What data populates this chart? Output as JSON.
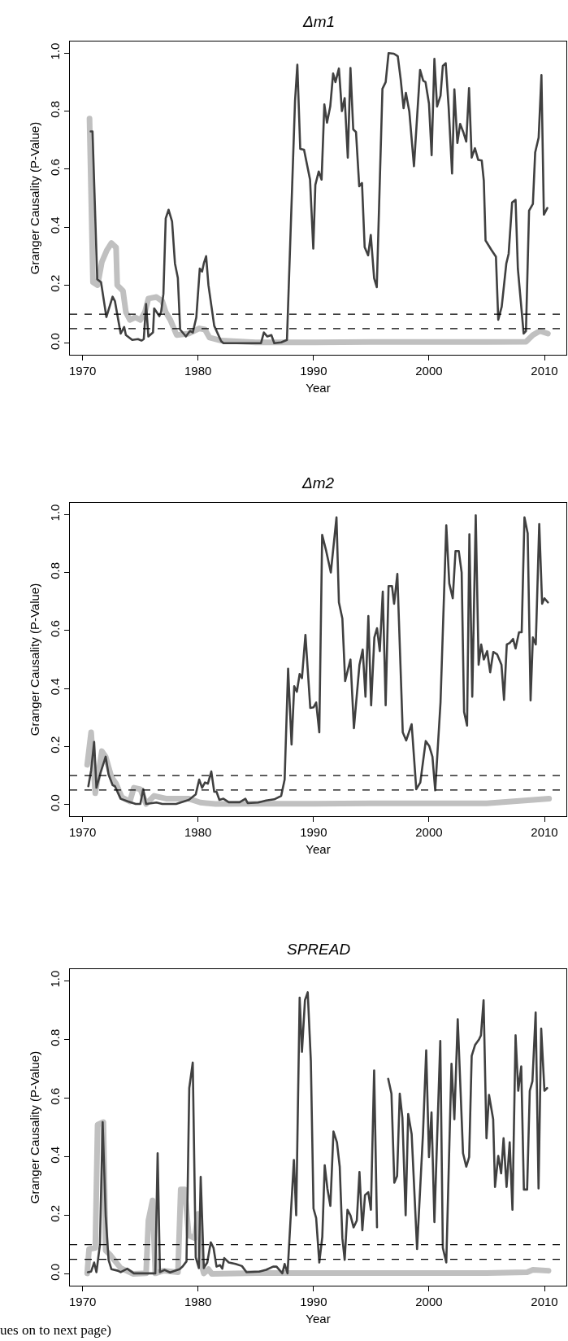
{
  "chart_data": [
    {
      "type": "line",
      "title": "Δm1",
      "xlabel": "Year",
      "ylabel": "Granger Causality (P-Value)",
      "xlim": [
        1968.9,
        2011.9
      ],
      "ylim": [
        -0.04,
        1.04
      ],
      "xticks": [
        1970,
        1980,
        1990,
        2000,
        2010
      ],
      "yticks": [
        {
          "value": 0,
          "label": "0.0"
        },
        {
          "value": 0.2,
          "label": "0.2"
        },
        {
          "value": 0.4,
          "label": "0.4"
        },
        {
          "value": 0.6,
          "label": "0.6"
        },
        {
          "value": 0.8,
          "label": "0.8"
        },
        {
          "value": 1,
          "label": "1.0"
        }
      ],
      "marker": "none",
      "line_style": "solid",
      "ref_lines": [
        {
          "axis": "y",
          "value": 0.1,
          "color": "#000000",
          "line_style": "dashed"
        },
        {
          "axis": "y",
          "value": 0.05,
          "color": "#000000",
          "line_style": "dashed"
        }
      ],
      "series": [
        {
          "color": "#c0c0c0",
          "x": [
            1970.6,
            1970.9,
            1971.3,
            1971.67,
            1972.1,
            1972.5,
            1972.9,
            1973.0,
            1973.5,
            1973.75,
            1974.1,
            1974.56,
            1975.0,
            1975.4,
            1975.7,
            1976.4,
            1976.9,
            1977.2,
            1977.6,
            1978.15,
            1979.2,
            1980.1,
            1980.6,
            1981.0,
            1982.0,
            1985.0,
            1990.0,
            1995.0,
            2000.0,
            2005.0,
            2008.4,
            2009.0,
            2009.6,
            2010.3
          ],
          "values": [
            0.774,
            0.21,
            0.2,
            0.28,
            0.32,
            0.345,
            0.33,
            0.2,
            0.18,
            0.107,
            0.08,
            0.089,
            0.08,
            0.107,
            0.154,
            0.159,
            0.145,
            0.107,
            0.08,
            0.028,
            0.033,
            0.051,
            0.047,
            0.019,
            0.009,
            0.003,
            0.003,
            0.004,
            0.004,
            0.004,
            0.005,
            0.028,
            0.042,
            0.033
          ]
        },
        {
          "color": "#404040",
          "x": [
            1970.7,
            1970.86,
            1971.27,
            1971.6,
            1972.06,
            1972.6,
            1972.8,
            1973.3,
            1973.6,
            1973.75,
            1974.3,
            1974.8,
            1975.1,
            1975.3,
            1975.5,
            1975.7,
            1976.1,
            1976.2,
            1976.65,
            1976.8,
            1977.0,
            1977.2,
            1977.45,
            1977.75,
            1978.0,
            1978.25,
            1978.45,
            1978.95,
            1979.3,
            1979.55,
            1979.85,
            1980.15,
            1980.35,
            1980.5,
            1980.7,
            1980.9,
            1981.4,
            1982.0,
            1982.2,
            1985.45,
            1985.7,
            1986.0,
            1986.35,
            1986.6,
            1987.2,
            1987.7,
            1988.4,
            1988.6,
            1988.85,
            1989.18,
            1989.7,
            1989.98,
            1990.16,
            1990.45,
            1990.7,
            1990.94,
            1991.17,
            1991.45,
            1991.7,
            1991.9,
            1992.2,
            1992.46,
            1992.7,
            1992.97,
            1993.2,
            1993.44,
            1993.68,
            1993.96,
            1994.2,
            1994.43,
            1994.73,
            1994.96,
            1995.25,
            1995.48,
            1995.97,
            1996.25,
            1996.5,
            1996.96,
            1997.3,
            1997.55,
            1997.8,
            1998.0,
            1998.3,
            1998.7,
            1999.23,
            1999.5,
            1999.7,
            2000.0,
            2000.23,
            2000.47,
            2000.7,
            2001.0,
            2001.2,
            2001.45,
            2001.7,
            2002.0,
            2002.2,
            2002.46,
            2002.7,
            2002.97,
            2003.23,
            2003.47,
            2003.7,
            2003.98,
            2004.26,
            2004.57,
            2004.75,
            2004.9,
            2005.4,
            2005.8,
            2006.0,
            2006.3,
            2006.7,
            2006.9,
            2007.2,
            2007.5,
            2007.7,
            2008.2,
            2008.4,
            2008.67,
            2009.0,
            2009.2,
            2009.5,
            2009.74,
            2009.95,
            2010.25
          ],
          "values": [
            0.73,
            0.73,
            0.22,
            0.21,
            0.09,
            0.16,
            0.145,
            0.033,
            0.056,
            0.028,
            0.011,
            0.014,
            0.009,
            0.014,
            0.135,
            0.023,
            0.037,
            0.12,
            0.093,
            0.107,
            0.17,
            0.43,
            0.46,
            0.42,
            0.275,
            0.225,
            0.047,
            0.023,
            0.042,
            0.037,
            0.089,
            0.257,
            0.247,
            0.275,
            0.3,
            0.2,
            0.06,
            0.007,
            0.0,
            0.0,
            0.037,
            0.023,
            0.028,
            0.0,
            0.003,
            0.011,
            0.835,
            0.96,
            0.67,
            0.667,
            0.564,
            0.326,
            0.546,
            0.592,
            0.564,
            0.823,
            0.76,
            0.816,
            0.93,
            0.9,
            0.947,
            0.8,
            0.845,
            0.64,
            0.949,
            0.737,
            0.728,
            0.541,
            0.552,
            0.331,
            0.303,
            0.373,
            0.224,
            0.193,
            0.877,
            0.9,
            1.0,
            0.998,
            0.989,
            0.91,
            0.81,
            0.863,
            0.798,
            0.61,
            0.942,
            0.905,
            0.9,
            0.826,
            0.648,
            0.98,
            0.816,
            0.853,
            0.956,
            0.965,
            0.816,
            0.585,
            0.875,
            0.69,
            0.756,
            0.728,
            0.695,
            0.879,
            0.64,
            0.672,
            0.632,
            0.63,
            0.56,
            0.354,
            0.322,
            0.298,
            0.081,
            0.126,
            0.275,
            0.308,
            0.485,
            0.494,
            0.256,
            0.033,
            0.042,
            0.457,
            0.48,
            0.658,
            0.709,
            0.924,
            0.443,
            0.466
          ]
        }
      ]
    },
    {
      "type": "line",
      "title": "Δm2",
      "xlabel": "Year",
      "ylabel": "Granger Causality (P-Value)",
      "xlim": [
        1968.9,
        2011.9
      ],
      "ylim": [
        -0.04,
        1.04
      ],
      "xticks": [
        1970,
        1980,
        1990,
        2000,
        2010
      ],
      "yticks": [
        {
          "value": 0,
          "label": "0.0"
        },
        {
          "value": 0.2,
          "label": "0.2"
        },
        {
          "value": 0.4,
          "label": "0.4"
        },
        {
          "value": 0.6,
          "label": "0.6"
        },
        {
          "value": 0.8,
          "label": "0.8"
        },
        {
          "value": 1,
          "label": "1.0"
        }
      ],
      "marker": "none",
      "line_style": "solid",
      "ref_lines": [
        {
          "axis": "y",
          "value": 0.1,
          "color": "#000000",
          "line_style": "dashed"
        },
        {
          "axis": "y",
          "value": 0.05,
          "color": "#000000",
          "line_style": "dashed"
        }
      ],
      "series": [
        {
          "color": "#c0c0c0",
          "x": [
            1970.4,
            1970.74,
            1971.1,
            1971.67,
            1972.0,
            1972.5,
            1972.9,
            1973.4,
            1974.1,
            1974.44,
            1975.0,
            1975.5,
            1976.2,
            1977.3,
            1979.2,
            1980.2,
            1981.5,
            1985.0,
            1990.0,
            1995.0,
            2000.0,
            2005.0,
            2009.0,
            2010.4
          ],
          "values": [
            0.137,
            0.249,
            0.039,
            0.184,
            0.165,
            0.095,
            0.072,
            0.025,
            0.011,
            0.058,
            0.053,
            0.002,
            0.03,
            0.02,
            0.02,
            0.007,
            0.002,
            0.003,
            0.003,
            0.004,
            0.004,
            0.004,
            0.016,
            0.02
          ]
        },
        {
          "color": "#404040",
          "x": [
            1970.5,
            1970.74,
            1971.0,
            1971.2,
            1971.55,
            1972.0,
            1972.25,
            1972.6,
            1972.8,
            1973.3,
            1973.9,
            1974.6,
            1975.0,
            1975.25,
            1975.5,
            1976.4,
            1976.9,
            1978.1,
            1979.2,
            1979.8,
            1980.1,
            1980.35,
            1980.6,
            1980.85,
            1981.15,
            1981.4,
            1981.6,
            1981.85,
            1982.2,
            1982.66,
            1983.6,
            1984.1,
            1984.3,
            1985.2,
            1985.9,
            1986.6,
            1987.2,
            1987.5,
            1987.8,
            1988.1,
            1988.33,
            1988.56,
            1988.8,
            1989.0,
            1989.3,
            1989.72,
            1990.0,
            1990.23,
            1990.5,
            1990.75,
            1991.1,
            1991.5,
            1991.99,
            1992.2,
            1992.5,
            1992.74,
            1993.2,
            1993.5,
            1993.98,
            1994.26,
            1994.5,
            1994.75,
            1994.99,
            1995.27,
            1995.5,
            1995.74,
            1996.0,
            1996.25,
            1996.5,
            1996.8,
            1996.98,
            1997.26,
            1997.73,
            1998.03,
            1998.5,
            1998.9,
            1999.25,
            1999.72,
            2000.02,
            2000.3,
            2000.54,
            2001.0,
            2001.5,
            2001.76,
            2002.06,
            2002.3,
            2002.58,
            2002.83,
            2003.04,
            2003.3,
            2003.5,
            2003.75,
            2004.05,
            2004.3,
            2004.52,
            2004.75,
            2005.04,
            2005.3,
            2005.57,
            2005.9,
            2006.28,
            2006.5,
            2006.74,
            2007.0,
            2007.28,
            2007.5,
            2007.8,
            2008.03,
            2008.27,
            2008.55,
            2008.8,
            2009.0,
            2009.25,
            2009.55,
            2009.8,
            2010.0,
            2010.3
          ],
          "values": [
            0.063,
            0.118,
            0.216,
            0.058,
            0.109,
            0.165,
            0.104,
            0.067,
            0.063,
            0.02,
            0.011,
            0.002,
            0.002,
            0.053,
            0.002,
            0.007,
            0.002,
            0.002,
            0.016,
            0.035,
            0.086,
            0.058,
            0.076,
            0.072,
            0.114,
            0.044,
            0.044,
            0.016,
            0.02,
            0.008,
            0.008,
            0.02,
            0.005,
            0.007,
            0.014,
            0.018,
            0.03,
            0.086,
            0.468,
            0.207,
            0.408,
            0.389,
            0.45,
            0.436,
            0.585,
            0.333,
            0.335,
            0.352,
            0.249,
            0.93,
            0.874,
            0.8,
            0.99,
            0.697,
            0.641,
            0.426,
            0.5,
            0.263,
            0.482,
            0.534,
            0.372,
            0.65,
            0.342,
            0.576,
            0.608,
            0.529,
            0.734,
            0.342,
            0.753,
            0.753,
            0.692,
            0.795,
            0.249,
            0.221,
            0.277,
            0.053,
            0.076,
            0.219,
            0.202,
            0.165,
            0.049,
            0.352,
            0.963,
            0.762,
            0.711,
            0.874,
            0.874,
            0.8,
            0.319,
            0.272,
            0.932,
            0.372,
            0.997,
            0.482,
            0.552,
            0.5,
            0.529,
            0.456,
            0.526,
            0.518,
            0.482,
            0.361,
            0.552,
            0.557,
            0.571,
            0.538,
            0.594,
            0.594,
            0.99,
            0.935,
            0.359,
            0.576,
            0.552,
            0.967,
            0.692,
            0.711,
            0.697
          ]
        }
      ]
    },
    {
      "type": "line",
      "title": "SPREAD",
      "xlabel": "Year",
      "ylabel": "Granger Causality (P-Value)",
      "xlim": [
        1968.9,
        2011.9
      ],
      "ylim": [
        -0.04,
        1.04
      ],
      "xticks": [
        1970,
        1980,
        1990,
        2000,
        2010
      ],
      "yticks": [
        {
          "value": 0,
          "label": "0.0"
        },
        {
          "value": 0.2,
          "label": "0.2"
        },
        {
          "value": 0.4,
          "label": "0.4"
        },
        {
          "value": 0.6,
          "label": "0.6"
        },
        {
          "value": 0.8,
          "label": "0.8"
        },
        {
          "value": 1,
          "label": "1.0"
        }
      ],
      "marker": "none",
      "line_style": "solid",
      "annotations": [
        "ues on to next page)"
      ],
      "ref_lines": [
        {
          "axis": "y",
          "value": 0.1,
          "color": "#000000",
          "line_style": "dashed"
        },
        {
          "axis": "y",
          "value": 0.05,
          "color": "#000000",
          "line_style": "dashed"
        }
      ],
      "series": [
        {
          "color": "#c0c0c0",
          "x": [
            1970.4,
            1970.56,
            1971.1,
            1971.3,
            1971.8,
            1972.0,
            1972.36,
            1973.3,
            1974.4,
            1975.5,
            1975.7,
            1976.06,
            1976.3,
            1977.0,
            1978.26,
            1978.5,
            1978.84,
            1979.2,
            1979.7,
            1980.0,
            1980.3,
            1980.5,
            1980.9,
            1981.2,
            1985.0,
            1990.0,
            1995.0,
            2000.0,
            2005.0,
            2008.5,
            2009.0,
            2010.35
          ],
          "values": [
            0.002,
            0.085,
            0.089,
            0.509,
            0.518,
            0.08,
            0.066,
            0.02,
            0.0,
            0.002,
            0.182,
            0.251,
            0.002,
            0.011,
            0.006,
            0.288,
            0.288,
            0.131,
            0.122,
            0.205,
            0.03,
            0.002,
            0.016,
            0.0,
            0.003,
            0.003,
            0.003,
            0.003,
            0.003,
            0.006,
            0.014,
            0.011
          ]
        },
        {
          "color": "#404040",
          "x": [
            1970.46,
            1970.74,
            1971.0,
            1971.2,
            1971.5,
            1971.74,
            1972.0,
            1972.25,
            1972.5,
            1973.05,
            1973.3,
            1973.87,
            1974.44,
            1976.3,
            1976.5,
            1976.7,
            1977.1,
            1977.57,
            1978.4,
            1978.66,
            1979.0,
            1979.24,
            1979.54,
            1979.8,
            1980.07,
            1980.23,
            1980.5,
            1980.8,
            1981.1,
            1981.34,
            1981.6,
            1981.9,
            1982.1,
            1982.27,
            1982.66,
            1983.24,
            1983.8,
            1984.2,
            1985.3,
            1985.9,
            1986.5,
            1986.8,
            1987.3,
            1987.5,
            1987.75,
            1988.3,
            1988.5,
            1988.8,
            1989.0,
            1989.26,
            1989.5,
            1989.77,
            1990.0,
            1990.23,
            1990.5,
            1990.76,
            1990.97,
            1991.2,
            1991.46,
            1991.73,
            1992.03,
            1992.27,
            1992.5,
            1992.7,
            1992.94,
            1993.2,
            1993.47,
            1993.75,
            1993.98,
            1994.23,
            1994.46,
            1994.74,
            1994.97,
            1995.25,
            1995.5,
            1996.0,
            1996.47,
            1996.75,
            1997.0,
            1997.24,
            1997.47,
            1997.7,
            1997.98,
            1998.2,
            1998.5,
            1998.97,
            1999.48,
            1999.76,
            2000.0,
            2000.22,
            2000.47,
            2000.98,
            2001.2,
            2001.5,
            2001.95,
            2002.2,
            2002.49,
            2002.95,
            2003.23,
            2003.48,
            2003.7,
            2003.99,
            2004.33,
            2004.5,
            2004.73,
            2004.98,
            2005.2,
            2005.56,
            2005.72,
            2006.0,
            2006.25,
            2006.46,
            2006.72,
            2006.99,
            2007.23,
            2007.5,
            2007.73,
            2007.99,
            2008.22,
            2008.5,
            2008.73,
            2008.96,
            2009.24,
            2009.49,
            2009.72,
            2010.0,
            2010.23
          ],
          "values": [
            0.006,
            0.008,
            0.039,
            0.006,
            0.099,
            0.518,
            0.2,
            0.048,
            0.016,
            0.011,
            0.006,
            0.018,
            0.002,
            0.002,
            0.412,
            0.006,
            0.014,
            0.005,
            0.016,
            0.025,
            0.043,
            0.634,
            0.721,
            0.057,
            0.02,
            0.331,
            0.02,
            0.039,
            0.108,
            0.089,
            0.025,
            0.03,
            0.018,
            0.054,
            0.039,
            0.034,
            0.027,
            0.006,
            0.008,
            0.014,
            0.025,
            0.025,
            0.002,
            0.034,
            0.002,
            0.389,
            0.2,
            0.943,
            0.758,
            0.934,
            0.961,
            0.726,
            0.223,
            0.191,
            0.039,
            0.126,
            0.371,
            0.292,
            0.232,
            0.486,
            0.449,
            0.366,
            0.122,
            0.048,
            0.219,
            0.2,
            0.159,
            0.182,
            0.348,
            0.149,
            0.269,
            0.279,
            0.219,
            0.694,
            0.159,
            null,
            0.666,
            0.615,
            0.311,
            0.334,
            0.615,
            0.532,
            0.2,
            0.546,
            0.477,
            0.085,
            0.477,
            0.763,
            0.399,
            0.551,
            0.177,
            0.795,
            0.089,
            0.039,
            0.717,
            0.528,
            0.869,
            0.412,
            0.366,
            0.399,
            0.744,
            0.781,
            0.8,
            0.814,
            0.934,
            0.463,
            0.611,
            0.528,
            0.297,
            0.403,
            0.343,
            0.463,
            0.297,
            0.449,
            0.219,
            0.814,
            0.625,
            0.708,
            0.288,
            0.288,
            0.625,
            0.657,
            0.892,
            0.292,
            0.837,
            0.625,
            0.634
          ]
        }
      ]
    }
  ]
}
